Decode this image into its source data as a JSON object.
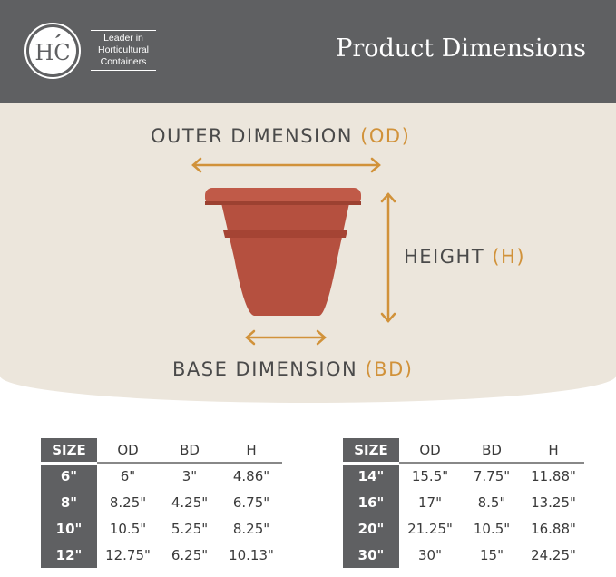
{
  "header": {
    "logo_text": "HC",
    "tagline": [
      "Leader in",
      "Horticultural",
      "Containers"
    ],
    "title": "Product Dimensions"
  },
  "diagram": {
    "outer": {
      "label": "OUTER DIMENSION",
      "abbr": "(OD)"
    },
    "height": {
      "label": "HEIGHT",
      "abbr": "(H)"
    },
    "base": {
      "label": "BASE DIMENSION",
      "abbr": "(BD)"
    },
    "colors": {
      "accent": "#d1923a",
      "pot": "#b5503f",
      "header": "#5f6062"
    }
  },
  "tables": [
    {
      "headers": [
        "SIZE",
        "OD",
        "BD",
        "H"
      ],
      "rows": [
        [
          "6\"",
          "6\"",
          "3\"",
          "4.86\""
        ],
        [
          "8\"",
          "8.25\"",
          "4.25\"",
          "6.75\""
        ],
        [
          "10\"",
          "10.5\"",
          "5.25\"",
          "8.25\""
        ],
        [
          "12\"",
          "12.75\"",
          "6.25\"",
          "10.13\""
        ]
      ]
    },
    {
      "headers": [
        "SIZE",
        "OD",
        "BD",
        "H"
      ],
      "rows": [
        [
          "14\"",
          "15.5\"",
          "7.75\"",
          "11.88\""
        ],
        [
          "16\"",
          "17\"",
          "8.5\"",
          "13.25\""
        ],
        [
          "20\"",
          "21.25\"",
          "10.5\"",
          "16.88\""
        ],
        [
          "30\"",
          "30\"",
          "15\"",
          "24.25\""
        ]
      ]
    }
  ]
}
